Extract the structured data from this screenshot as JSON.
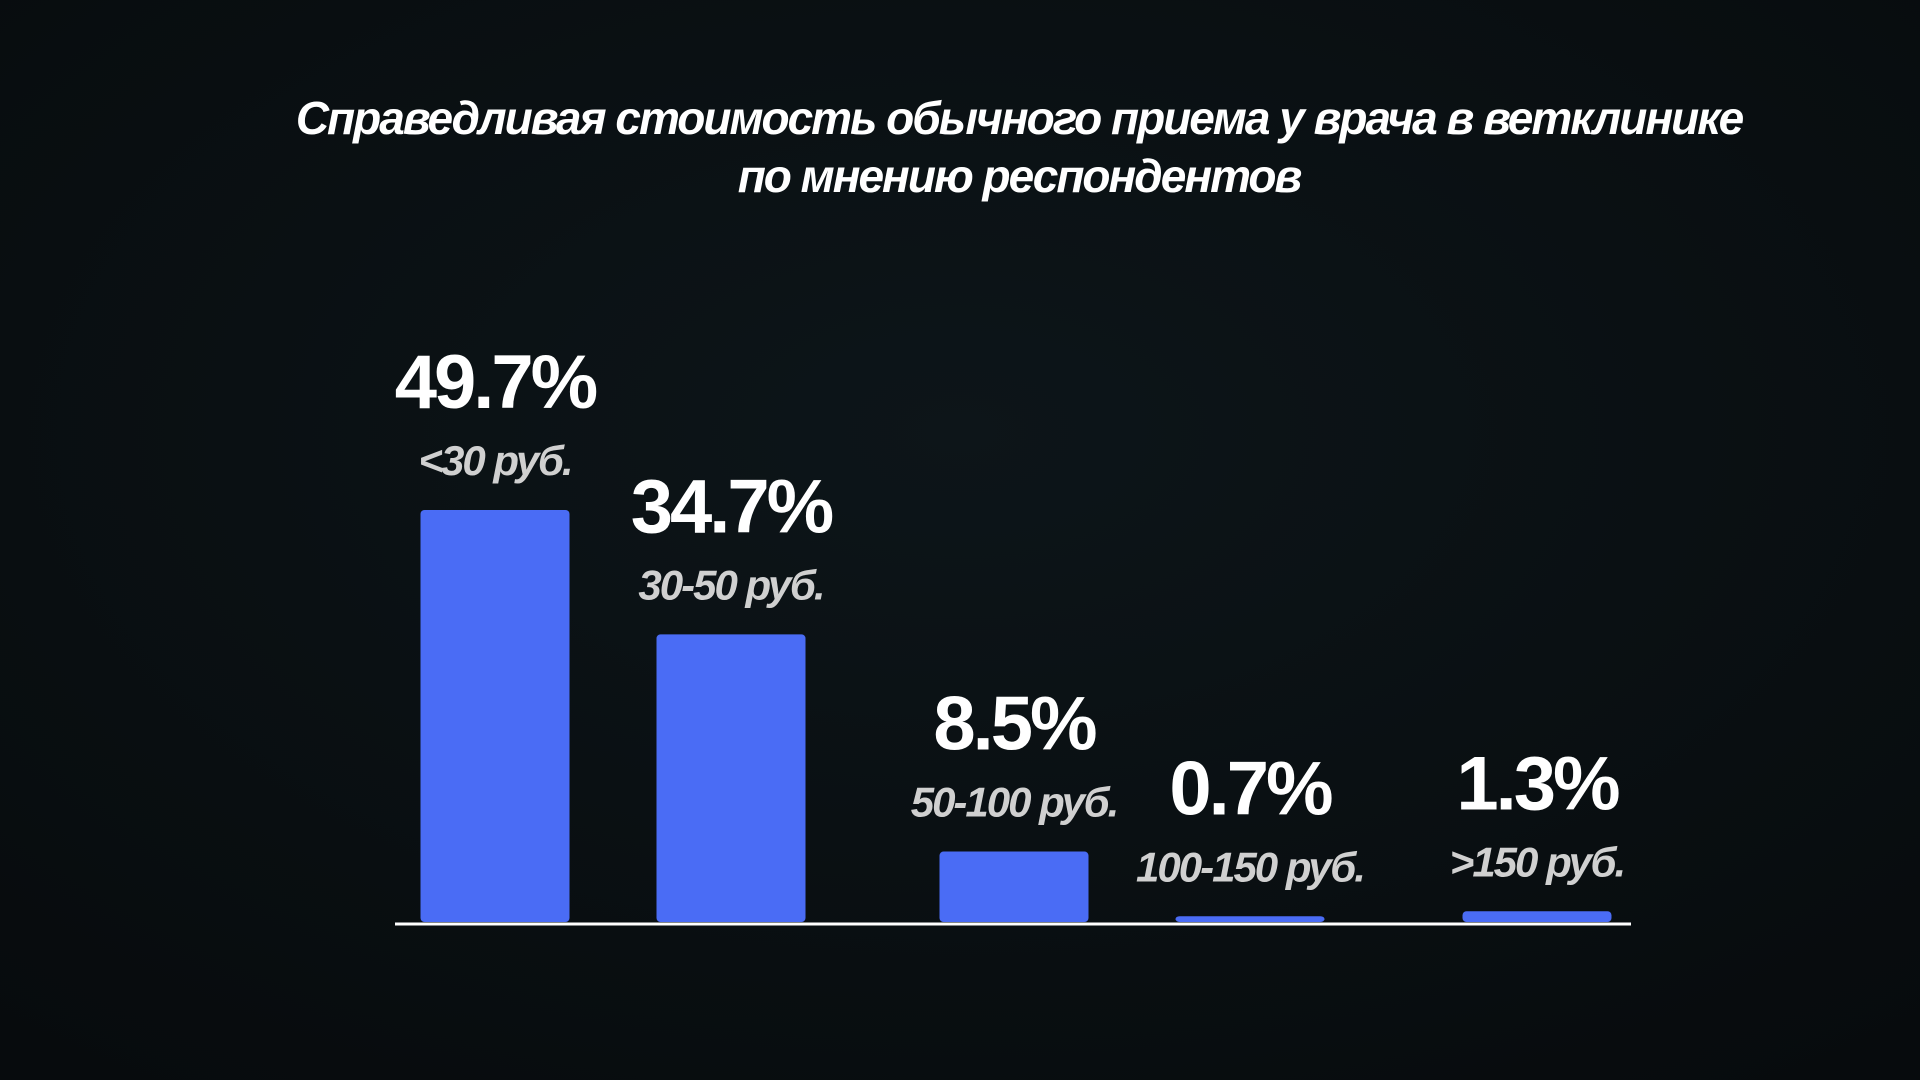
{
  "chart_data": {
    "type": "bar",
    "title_lines": [
      "Справедливая стоимость обычного приема у врача в ветклинике",
      "по мнению респондентов"
    ],
    "categories": [
      "<30 руб.",
      "30-50 руб.",
      "50-100 руб.",
      "100-150 руб.",
      ">150 руб."
    ],
    "values": [
      49.7,
      34.7,
      8.5,
      0.7,
      1.3
    ],
    "value_labels": [
      "49.7%",
      "34.7%",
      "8.5%",
      "0.7%",
      "1.3%"
    ],
    "color": "#4a6cf5"
  }
}
